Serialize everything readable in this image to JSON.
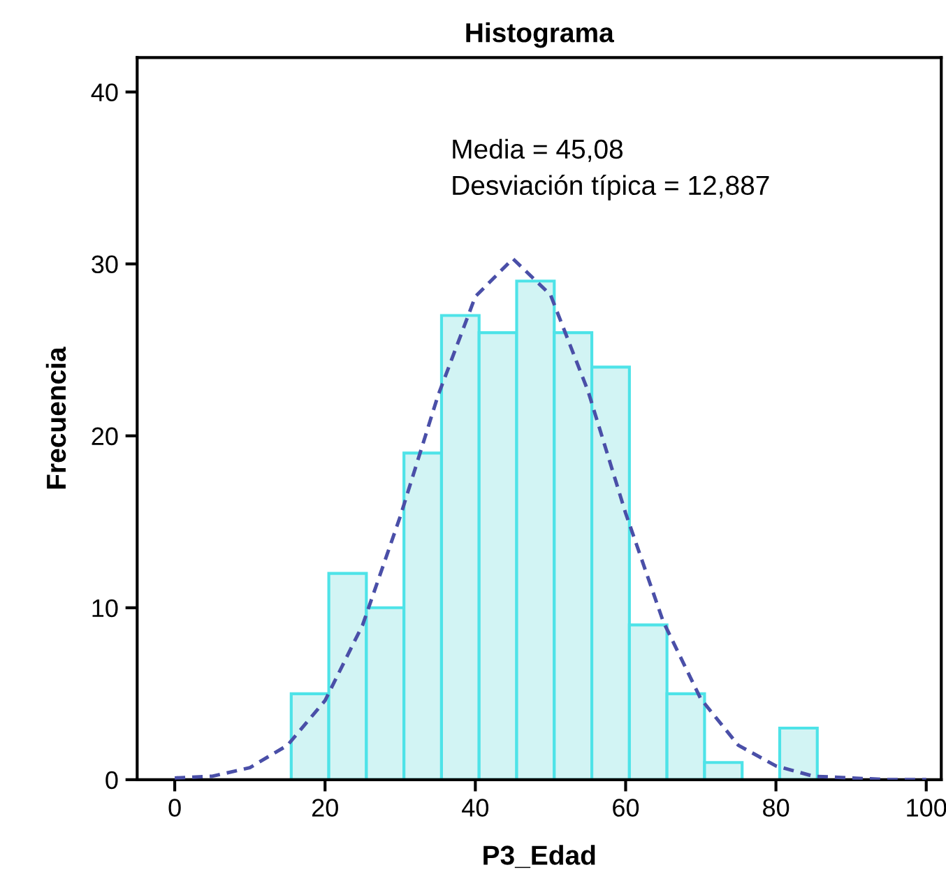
{
  "chart_data": {
    "type": "histogram",
    "title": "Histograma",
    "xlabel": "P3_Edad",
    "ylabel": "Frecuencia",
    "bins": [
      15.5,
      20.5,
      25.5,
      30.5,
      35.5,
      40.5,
      45.5,
      50.5,
      55.5,
      60.5,
      65.5,
      70.5,
      75.5,
      80.5,
      85.5
    ],
    "values": [
      5,
      12,
      10,
      19,
      27,
      26,
      29,
      26,
      24,
      9,
      5,
      1,
      0,
      3
    ],
    "color": "#d2f4f4",
    "series": [
      {
        "type": "line",
        "color": "#4a4fa8",
        "line_style": "dashed",
        "x": [
          0,
          5,
          10,
          15,
          20,
          25,
          30,
          35,
          40,
          45,
          50,
          55,
          60,
          65,
          70,
          75,
          80,
          85,
          90,
          95,
          100
        ],
        "values": [
          0.1,
          0.2,
          0.7,
          2.0,
          4.6,
          9.0,
          15.3,
          22.3,
          28.1,
          30.3,
          28.2,
          22.6,
          15.5,
          9.2,
          4.7,
          2.0,
          0.8,
          0.2,
          0.1,
          0,
          0
        ]
      }
    ],
    "annotations": [
      "Media = 45,08",
      "Desviación típica = 12,887"
    ],
    "xlim": [
      -5,
      102
    ],
    "ylim": [
      0,
      42
    ],
    "xticks": [
      0,
      20,
      40,
      60,
      80,
      100
    ],
    "yticks": [
      0,
      10,
      20,
      30,
      40
    ],
    "grid": false,
    "legend": false
  }
}
